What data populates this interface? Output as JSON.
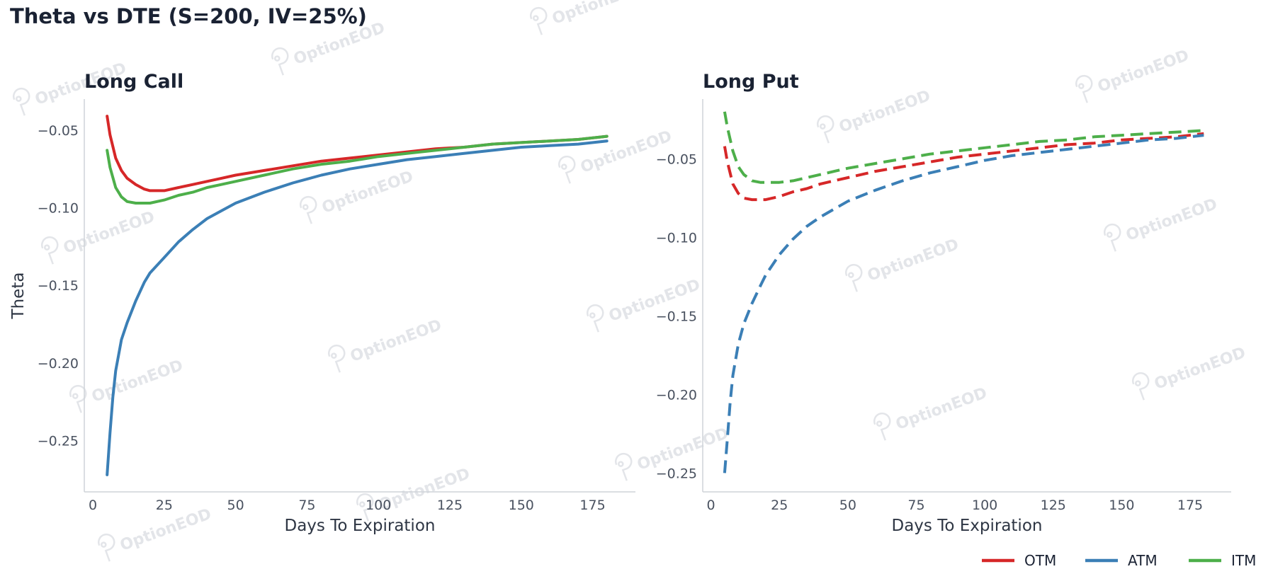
{
  "title": "Theta vs DTE (S=200, IV=25%)",
  "watermark_text": "OptionEOD",
  "chart_data": [
    {
      "type": "line",
      "title": "Long Call",
      "xlabel": "Days To Expiration",
      "ylabel": "Theta",
      "xlim": [
        -3,
        190
      ],
      "ylim": [
        -0.283,
        -0.03
      ],
      "xticks": [
        0,
        25,
        50,
        75,
        100,
        125,
        150,
        175
      ],
      "yticks": [
        -0.25,
        -0.2,
        -0.15,
        -0.1,
        -0.05
      ],
      "ytick_labels": [
        "−0.25",
        "−0.20",
        "−0.15",
        "−0.10",
        "−0.05"
      ],
      "line_style": "solid",
      "grid": false,
      "series": [
        {
          "name": "OTM",
          "color": "#d62728",
          "x": [
            5,
            6,
            8,
            10,
            12,
            15,
            18,
            20,
            25,
            30,
            35,
            40,
            45,
            50,
            60,
            70,
            80,
            90,
            100,
            110,
            120,
            130,
            140,
            150,
            160,
            170,
            180
          ],
          "y": [
            -0.041,
            -0.053,
            -0.068,
            -0.076,
            -0.081,
            -0.085,
            -0.088,
            -0.089,
            -0.089,
            -0.087,
            -0.085,
            -0.083,
            -0.081,
            -0.079,
            -0.076,
            -0.073,
            -0.07,
            -0.068,
            -0.066,
            -0.064,
            -0.062,
            -0.061,
            -0.059,
            -0.058,
            -0.057,
            -0.056,
            -0.054
          ]
        },
        {
          "name": "ATM",
          "color": "#3b7fb6",
          "x": [
            5,
            6,
            7,
            8,
            10,
            12,
            15,
            18,
            20,
            25,
            30,
            35,
            40,
            45,
            50,
            60,
            70,
            80,
            90,
            100,
            110,
            120,
            130,
            140,
            150,
            160,
            170,
            180
          ],
          "y": [
            -0.272,
            -0.245,
            -0.222,
            -0.205,
            -0.185,
            -0.174,
            -0.16,
            -0.148,
            -0.142,
            -0.132,
            -0.122,
            -0.114,
            -0.107,
            -0.102,
            -0.097,
            -0.09,
            -0.084,
            -0.079,
            -0.075,
            -0.072,
            -0.069,
            -0.067,
            -0.065,
            -0.063,
            -0.061,
            -0.06,
            -0.059,
            -0.057
          ]
        },
        {
          "name": "ITM",
          "color": "#4daf4a",
          "x": [
            5,
            6,
            8,
            10,
            12,
            15,
            18,
            20,
            25,
            30,
            35,
            40,
            45,
            50,
            60,
            70,
            80,
            90,
            100,
            110,
            120,
            130,
            140,
            150,
            160,
            170,
            180
          ],
          "y": [
            -0.063,
            -0.074,
            -0.087,
            -0.093,
            -0.096,
            -0.097,
            -0.097,
            -0.097,
            -0.095,
            -0.092,
            -0.09,
            -0.087,
            -0.085,
            -0.083,
            -0.079,
            -0.075,
            -0.072,
            -0.07,
            -0.067,
            -0.065,
            -0.063,
            -0.061,
            -0.059,
            -0.058,
            -0.057,
            -0.056,
            -0.054
          ]
        }
      ]
    },
    {
      "type": "line",
      "title": "Long Put",
      "xlabel": "Days To Expiration",
      "ylabel": "",
      "xlim": [
        -3,
        190
      ],
      "ylim": [
        -0.262,
        -0.012
      ],
      "xticks": [
        0,
        25,
        50,
        75,
        100,
        125,
        150,
        175
      ],
      "yticks": [
        -0.25,
        -0.2,
        -0.15,
        -0.1,
        -0.05
      ],
      "ytick_labels": [
        "−0.25",
        "−0.20",
        "−0.15",
        "−0.10",
        "−0.05"
      ],
      "line_style": "dashed",
      "grid": false,
      "series": [
        {
          "name": "OTM",
          "color": "#d62728",
          "x": [
            5,
            6,
            8,
            10,
            12,
            15,
            18,
            20,
            25,
            30,
            35,
            40,
            45,
            50,
            60,
            70,
            80,
            90,
            100,
            110,
            120,
            130,
            140,
            150,
            160,
            170,
            180
          ],
          "y": [
            -0.042,
            -0.052,
            -0.066,
            -0.072,
            -0.075,
            -0.076,
            -0.076,
            -0.076,
            -0.074,
            -0.071,
            -0.069,
            -0.066,
            -0.064,
            -0.062,
            -0.058,
            -0.055,
            -0.052,
            -0.049,
            -0.047,
            -0.045,
            -0.043,
            -0.041,
            -0.04,
            -0.038,
            -0.037,
            -0.036,
            -0.034
          ]
        },
        {
          "name": "ATM",
          "color": "#3b7fb6",
          "x": [
            5,
            6,
            7,
            8,
            10,
            12,
            15,
            18,
            20,
            25,
            30,
            35,
            40,
            45,
            50,
            60,
            70,
            80,
            90,
            100,
            110,
            120,
            130,
            140,
            150,
            160,
            170,
            180
          ],
          "y": [
            -0.25,
            -0.228,
            -0.205,
            -0.188,
            -0.168,
            -0.155,
            -0.142,
            -0.131,
            -0.124,
            -0.111,
            -0.101,
            -0.093,
            -0.087,
            -0.082,
            -0.077,
            -0.07,
            -0.064,
            -0.059,
            -0.055,
            -0.051,
            -0.048,
            -0.046,
            -0.044,
            -0.042,
            -0.04,
            -0.038,
            -0.037,
            -0.035
          ]
        },
        {
          "name": "ITM",
          "color": "#4daf4a",
          "x": [
            5,
            6,
            8,
            10,
            12,
            15,
            18,
            20,
            25,
            30,
            35,
            40,
            45,
            50,
            60,
            70,
            80,
            90,
            100,
            110,
            120,
            130,
            140,
            150,
            160,
            170,
            180
          ],
          "y": [
            -0.02,
            -0.03,
            -0.045,
            -0.055,
            -0.06,
            -0.064,
            -0.065,
            -0.065,
            -0.065,
            -0.064,
            -0.062,
            -0.06,
            -0.058,
            -0.056,
            -0.053,
            -0.05,
            -0.047,
            -0.045,
            -0.043,
            -0.041,
            -0.039,
            -0.038,
            -0.036,
            -0.035,
            -0.034,
            -0.033,
            -0.032
          ]
        }
      ]
    }
  ],
  "legend": {
    "placement": "bottom-right",
    "items": [
      {
        "label": "OTM",
        "color": "#d62728"
      },
      {
        "label": "ATM",
        "color": "#3b7fb6"
      },
      {
        "label": "ITM",
        "color": "#4daf4a"
      }
    ]
  }
}
